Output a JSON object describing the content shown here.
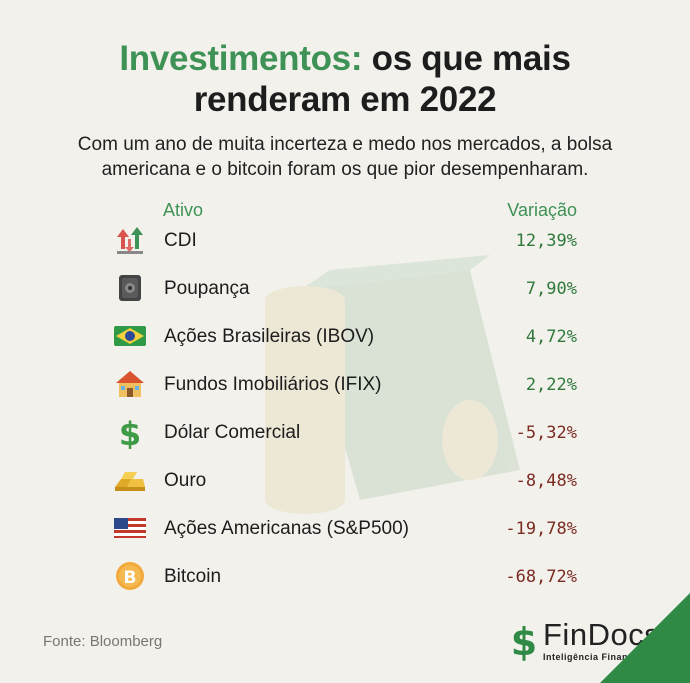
{
  "title": {
    "highlight": "Investimentos:",
    "rest_line1": " os que mais",
    "line2": "renderam em 2022"
  },
  "subtitle": {
    "line1_a": "Com um ano de muita incerteza e medo nos mercados, ",
    "line1_b": "a bolsa",
    "line2": "americana e o bitcoin foram os que pior desempenharam."
  },
  "columns": {
    "asset": "Ativo",
    "variation": "Variação"
  },
  "colors": {
    "accent": "#3e9255",
    "positive": "#2f7a3c",
    "negative": "#7a2b22"
  },
  "chart_data": {
    "type": "table",
    "columns": [
      "Ativo",
      "Variação"
    ],
    "rows": [
      {
        "asset": "CDI",
        "value": "12,39%",
        "icon": "arrows-up-down-icon"
      },
      {
        "asset": "Poupança",
        "value": "7,90%",
        "icon": "safe-icon"
      },
      {
        "asset": "Ações Brasileiras (IBOV)",
        "value": "4,72%",
        "icon": "brazil-flag-icon"
      },
      {
        "asset": "Fundos Imobiliários (IFIX)",
        "value": "2,22%",
        "icon": "house-icon"
      },
      {
        "asset": "Dólar Comercial",
        "value": "-5,32%",
        "icon": "dollar-sign-icon"
      },
      {
        "asset": "Ouro",
        "value": "-8,48%",
        "icon": "gold-bars-icon"
      },
      {
        "asset": "Ações Americanas (S&P500)",
        "value": "-19,78%",
        "icon": "us-flag-icon"
      },
      {
        "asset": "Bitcoin",
        "value": "-68,72%",
        "icon": "bitcoin-icon"
      }
    ]
  },
  "footer": {
    "source": "Fonte: Bloomberg",
    "brand": "FinDocs",
    "tagline": "Inteligência Financeira"
  }
}
